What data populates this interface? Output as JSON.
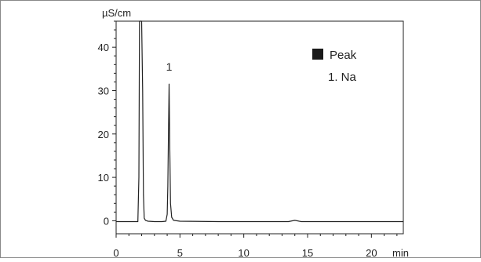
{
  "chart_data": {
    "type": "line",
    "ylabel": "µS/cm",
    "xlabel": "min",
    "xlim": [
      0,
      22.5
    ],
    "ylim": [
      -3,
      46
    ],
    "x_ticks": [
      0,
      5,
      10,
      15,
      20
    ],
    "y_ticks": [
      0,
      10,
      20,
      30,
      40
    ],
    "x_tick_labels": [
      "0",
      "5",
      "10",
      "15",
      "20"
    ],
    "y_tick_labels": [
      "0",
      "10",
      "20",
      "30",
      "40"
    ],
    "grid": false,
    "legend_placement": "top-right",
    "legend": {
      "title": "Peak",
      "entries": [
        "1. Na"
      ]
    },
    "series": [
      {
        "x": [
          0,
          1.7,
          1.78,
          1.83,
          1.86,
          1.92,
          2.0,
          2.08,
          2.14,
          2.2,
          2.3,
          2.5,
          3.0,
          3.6,
          3.9,
          4.0,
          4.05,
          4.1,
          4.15,
          4.2,
          4.26,
          4.35,
          4.5,
          5.0,
          8.0,
          13.5,
          14.0,
          14.5,
          20.0,
          22.5
        ],
        "y": [
          -0.2,
          -0.2,
          10,
          46,
          46,
          46,
          46,
          30,
          6,
          0.6,
          0.1,
          -0.1,
          -0.2,
          -0.2,
          -0.1,
          1.5,
          8,
          20,
          31.5,
          18,
          4,
          0.8,
          0.1,
          -0.1,
          -0.2,
          -0.2,
          0.1,
          -0.2,
          -0.2,
          -0.2
        ]
      }
    ],
    "peak_labels": [
      {
        "text": "1",
        "x": 4.15,
        "y": 31.5
      }
    ],
    "colors": {
      "line": "#222222",
      "axis": "#222222",
      "legend_marker": "#1a1a1a"
    }
  }
}
